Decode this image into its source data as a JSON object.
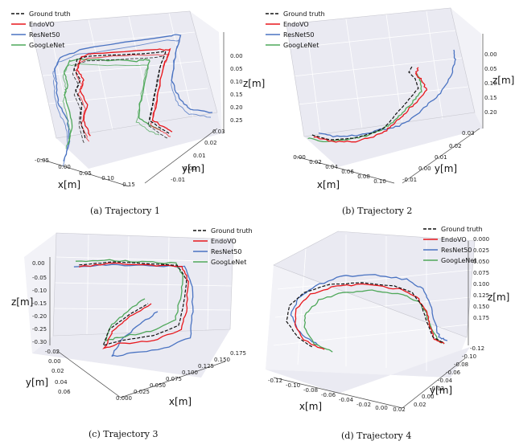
{
  "legend_labels": [
    "Ground truth",
    "EndoVO",
    "ResNet50",
    "GoogLeNet"
  ],
  "series_colors": [
    "#111111",
    "#e8171c",
    "#4a73c2",
    "#4fa85a"
  ],
  "chart_data": [
    {
      "type": "line3d",
      "caption": "(a) Trajectory 1",
      "series": [
        "Ground truth",
        "EndoVO",
        "ResNet50",
        "GoogLeNet"
      ],
      "xlabel": "x[m]",
      "ylabel": "y[m]",
      "zlabel": "z[m]",
      "xticks": [
        "-0.05",
        "0.00",
        "0.05",
        "0.10",
        "0.15"
      ],
      "yticks": [
        "-0.01",
        "0.00",
        "0.01",
        "0.02",
        "0.03"
      ],
      "zticks": [
        "0.00",
        "0.05",
        "0.10",
        "0.15",
        "0.20",
        "0.25"
      ]
    },
    {
      "type": "line3d",
      "caption": "(b) Trajectory 2",
      "series": [
        "Ground truth",
        "EndoVO",
        "ResNet50",
        "GoogLeNet"
      ],
      "xlabel": "x[m]",
      "ylabel": "y[m]",
      "zlabel": "z[m]",
      "xticks": [
        "0.00",
        "0.02",
        "0.04",
        "0.06",
        "0.08",
        "0.10"
      ],
      "yticks": [
        "-0.01",
        "0.00",
        "0.01",
        "0.02",
        "0.03"
      ],
      "zticks": [
        "0.00",
        "0.05",
        "0.10",
        "0.15",
        "0.20"
      ]
    },
    {
      "type": "line3d",
      "caption": "(c) Trajectory 3",
      "series": [
        "Ground truth",
        "EndoVO",
        "ResNet50",
        "GoogLeNet"
      ],
      "xlabel": "x[m]",
      "ylabel": "y[m]",
      "zlabel": "z[m]",
      "xticks": [
        "0.000",
        "0.025",
        "0.050",
        "0.075",
        "0.100",
        "0.125",
        "0.150",
        "0.175"
      ],
      "yticks": [
        "-0.02",
        "0.00",
        "0.02",
        "0.04",
        "0.06"
      ],
      "zticks": [
        "0.00",
        "-0.05",
        "-0.10",
        "-0.15",
        "-0.20",
        "-0.25",
        "-0.30"
      ]
    },
    {
      "type": "line3d",
      "caption": "(d) Trajectory 4",
      "series": [
        "Ground truth",
        "EndoVO",
        "ResNet50",
        "GoogLeNet"
      ],
      "xlabel": "x[m]",
      "ylabel": "y[m]",
      "zlabel": "z[m]",
      "xticks": [
        "-0.12",
        "-0.10",
        "-0.08",
        "-0.06",
        "-0.04",
        "-0.02",
        "0.00",
        "0.02"
      ],
      "yticks": [
        "0.02",
        "0.00",
        "-0.02",
        "-0.04",
        "-0.06",
        "-0.08",
        "-0.10",
        "-0.12"
      ],
      "zticks": [
        "0.000",
        "0.025",
        "0.050",
        "0.075",
        "0.100",
        "0.125",
        "0.150",
        "0.175"
      ]
    }
  ]
}
